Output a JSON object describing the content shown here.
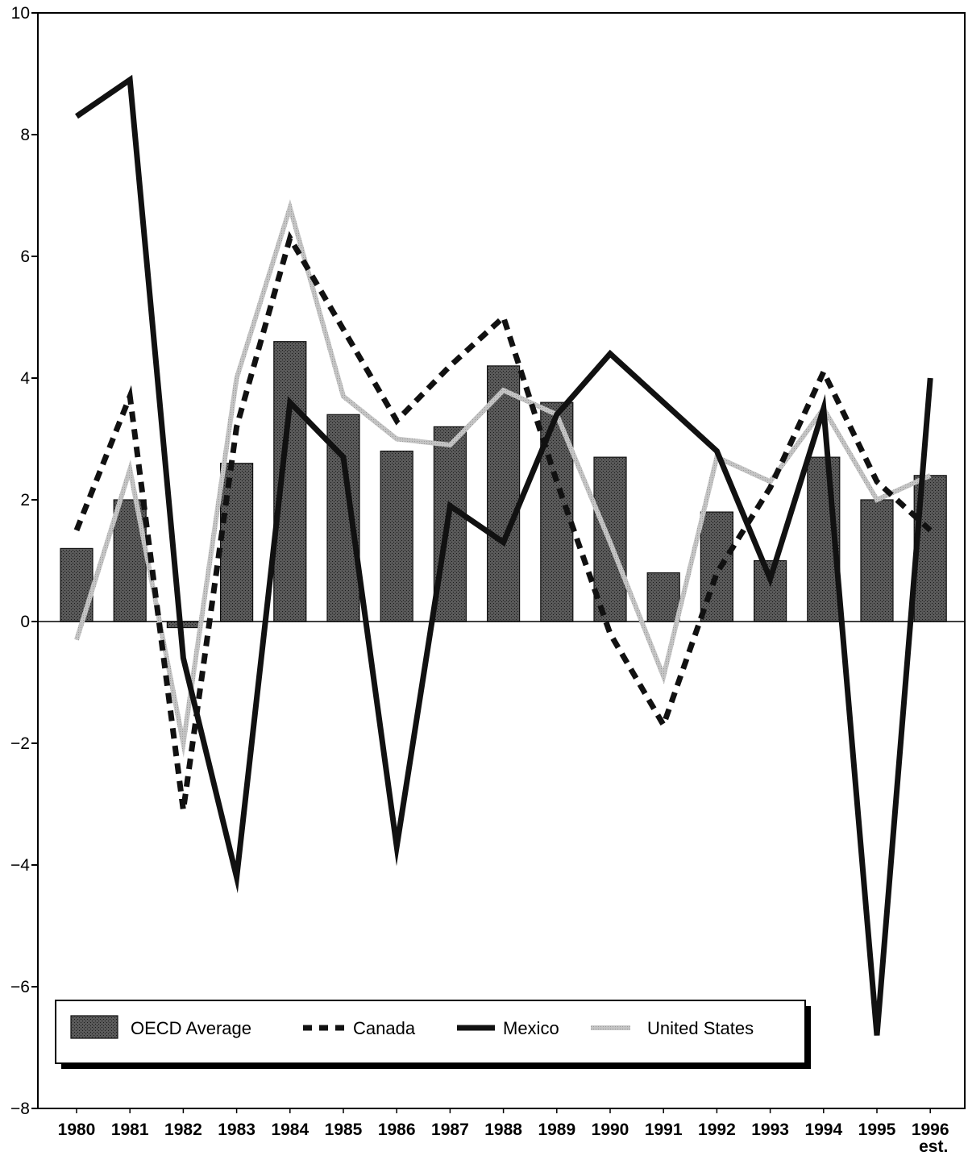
{
  "chart_data": {
    "type": "bar",
    "title": "",
    "xlabel": "",
    "ylabel": "",
    "ylim": [
      -8,
      10
    ],
    "yticks": [
      10,
      8,
      6,
      4,
      2,
      0,
      -2,
      -4,
      -6,
      -8
    ],
    "ytick_labels": [
      "10",
      "8",
      "6",
      "4",
      "2",
      "0",
      "−2",
      "−4",
      "−6",
      "−8"
    ],
    "categories": [
      "1980",
      "1981",
      "1982",
      "1983",
      "1984",
      "1985",
      "1986",
      "1987",
      "1988",
      "1989",
      "1990",
      "1991",
      "1992",
      "1993",
      "1994",
      "1995",
      "1996"
    ],
    "category_sublabels": {
      "1996": "est."
    },
    "grid": false,
    "legend": {
      "placement": "bottom-left"
    },
    "series": [
      {
        "name": "OECD Average",
        "kind": "bar",
        "color": "#555555",
        "values": [
          1.2,
          2.0,
          -0.1,
          2.6,
          4.6,
          3.4,
          2.8,
          3.2,
          4.2,
          3.6,
          2.7,
          0.8,
          1.8,
          1.0,
          2.7,
          2.0,
          2.4
        ]
      },
      {
        "name": "Canada",
        "kind": "line",
        "style": "dashed",
        "color": "#111111",
        "values": [
          1.5,
          3.7,
          -3.1,
          3.2,
          6.3,
          4.8,
          3.3,
          4.2,
          5.0,
          2.3,
          -0.2,
          -1.7,
          0.8,
          2.2,
          4.1,
          2.3,
          1.5
        ]
      },
      {
        "name": "Mexico",
        "kind": "line",
        "style": "solid",
        "color": "#111111",
        "values": [
          8.3,
          8.9,
          -0.6,
          -4.2,
          3.6,
          2.7,
          -3.7,
          1.9,
          1.3,
          3.4,
          4.4,
          3.6,
          2.8,
          0.7,
          3.5,
          -6.8,
          4.0
        ]
      },
      {
        "name": "United States",
        "kind": "line",
        "style": "solid",
        "color": "#bdbdbd",
        "values": [
          -0.3,
          2.5,
          -2.0,
          4.0,
          6.8,
          3.7,
          3.0,
          2.9,
          3.8,
          3.4,
          1.3,
          -0.9,
          2.7,
          2.3,
          3.5,
          2.0,
          2.4
        ]
      }
    ]
  }
}
